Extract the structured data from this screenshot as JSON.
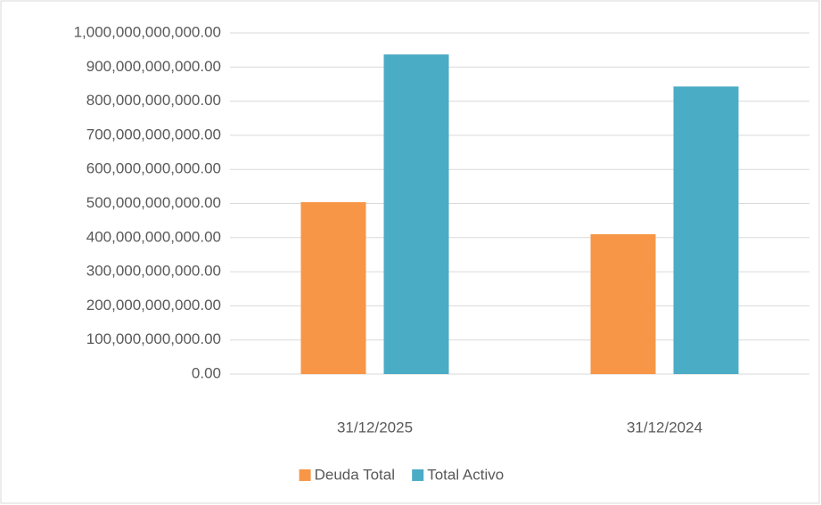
{
  "chart_data": {
    "type": "bar",
    "categories": [
      "31/12/2025",
      "31/12/2024"
    ],
    "series": [
      {
        "name": "Deuda Total",
        "color": "#f79646",
        "values": [
          504000000000,
          410000000000
        ]
      },
      {
        "name": "Total Activo",
        "color": "#4bacc6",
        "values": [
          937000000000,
          843000000000
        ]
      }
    ],
    "ylim": [
      0,
      1000000000000
    ],
    "yticks": [
      {
        "value": 0,
        "label": "0.00"
      },
      {
        "value": 100000000000,
        "label": "100,000,000,000.00"
      },
      {
        "value": 200000000000,
        "label": "200,000,000,000.00"
      },
      {
        "value": 300000000000,
        "label": "300,000,000,000.00"
      },
      {
        "value": 400000000000,
        "label": "400,000,000,000.00"
      },
      {
        "value": 500000000000,
        "label": "500,000,000,000.00"
      },
      {
        "value": 600000000000,
        "label": "600,000,000,000.00"
      },
      {
        "value": 700000000000,
        "label": "700,000,000,000.00"
      },
      {
        "value": 800000000000,
        "label": "800,000,000,000.00"
      },
      {
        "value": 900000000000,
        "label": "900,000,000,000.00"
      },
      {
        "value": 1000000000000,
        "label": "1,000,000,000,000.00"
      }
    ],
    "grid": true,
    "legend": "bottom"
  }
}
